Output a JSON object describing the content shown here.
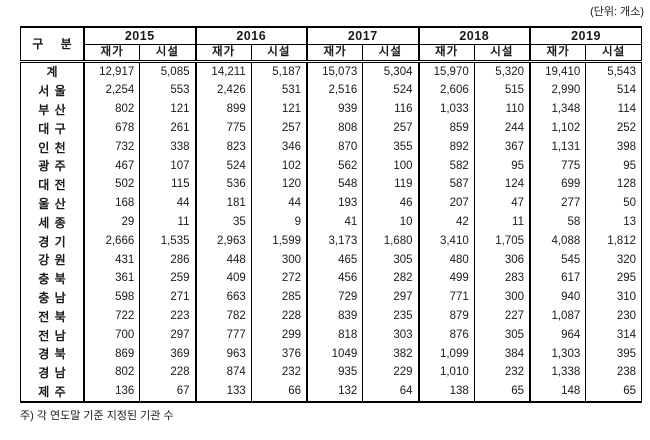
{
  "unit_label": "(단위: 개소)",
  "footnote": "주) 각 연도말 기준 지정된 기관 수",
  "table": {
    "corner_header": "구 분",
    "years": [
      "2015",
      "2016",
      "2017",
      "2018",
      "2019"
    ],
    "sub_headers": [
      "재가",
      "시설"
    ],
    "rows": [
      {
        "label": "계",
        "values": [
          "12,917",
          "5,085",
          "14,211",
          "5,187",
          "15,073",
          "5,304",
          "15,970",
          "5,320",
          "19,410",
          "5,543"
        ]
      },
      {
        "label": "서 울",
        "values": [
          "2,254",
          "553",
          "2,426",
          "531",
          "2,516",
          "524",
          "2,606",
          "515",
          "2,990",
          "514"
        ]
      },
      {
        "label": "부 산",
        "values": [
          "802",
          "121",
          "899",
          "121",
          "939",
          "116",
          "1,033",
          "110",
          "1,348",
          "114"
        ]
      },
      {
        "label": "대 구",
        "values": [
          "678",
          "261",
          "775",
          "257",
          "808",
          "257",
          "859",
          "244",
          "1,102",
          "252"
        ]
      },
      {
        "label": "인 천",
        "values": [
          "732",
          "338",
          "823",
          "346",
          "870",
          "355",
          "892",
          "367",
          "1,131",
          "398"
        ]
      },
      {
        "label": "광 주",
        "values": [
          "467",
          "107",
          "524",
          "102",
          "562",
          "100",
          "582",
          "95",
          "775",
          "95"
        ]
      },
      {
        "label": "대 전",
        "values": [
          "502",
          "115",
          "536",
          "120",
          "548",
          "119",
          "587",
          "124",
          "699",
          "128"
        ]
      },
      {
        "label": "울 산",
        "values": [
          "168",
          "44",
          "181",
          "44",
          "193",
          "46",
          "207",
          "47",
          "277",
          "50"
        ]
      },
      {
        "label": "세 종",
        "values": [
          "29",
          "11",
          "35",
          "9",
          "41",
          "10",
          "42",
          "11",
          "58",
          "13"
        ]
      },
      {
        "label": "경 기",
        "values": [
          "2,666",
          "1,535",
          "2,963",
          "1,599",
          "3,173",
          "1,680",
          "3,410",
          "1,705",
          "4,088",
          "1,812"
        ]
      },
      {
        "label": "강 원",
        "values": [
          "431",
          "286",
          "448",
          "300",
          "465",
          "305",
          "480",
          "306",
          "545",
          "320"
        ]
      },
      {
        "label": "충 북",
        "values": [
          "361",
          "259",
          "409",
          "272",
          "456",
          "282",
          "499",
          "283",
          "617",
          "295"
        ]
      },
      {
        "label": "충 남",
        "values": [
          "598",
          "271",
          "663",
          "285",
          "729",
          "297",
          "771",
          "300",
          "940",
          "310"
        ]
      },
      {
        "label": "전 북",
        "values": [
          "722",
          "223",
          "782",
          "228",
          "839",
          "235",
          "879",
          "227",
          "1,087",
          "230"
        ]
      },
      {
        "label": "전 남",
        "values": [
          "700",
          "297",
          "777",
          "299",
          "818",
          "303",
          "876",
          "305",
          "964",
          "314"
        ]
      },
      {
        "label": "경 북",
        "values": [
          "869",
          "369",
          "963",
          "376",
          "1049",
          "382",
          "1,099",
          "384",
          "1,303",
          "395"
        ]
      },
      {
        "label": "경 남",
        "values": [
          "802",
          "228",
          "874",
          "232",
          "935",
          "229",
          "1,010",
          "232",
          "1,338",
          "238"
        ]
      },
      {
        "label": "제 주",
        "values": [
          "136",
          "67",
          "133",
          "66",
          "132",
          "64",
          "138",
          "65",
          "148",
          "65"
        ]
      }
    ]
  }
}
